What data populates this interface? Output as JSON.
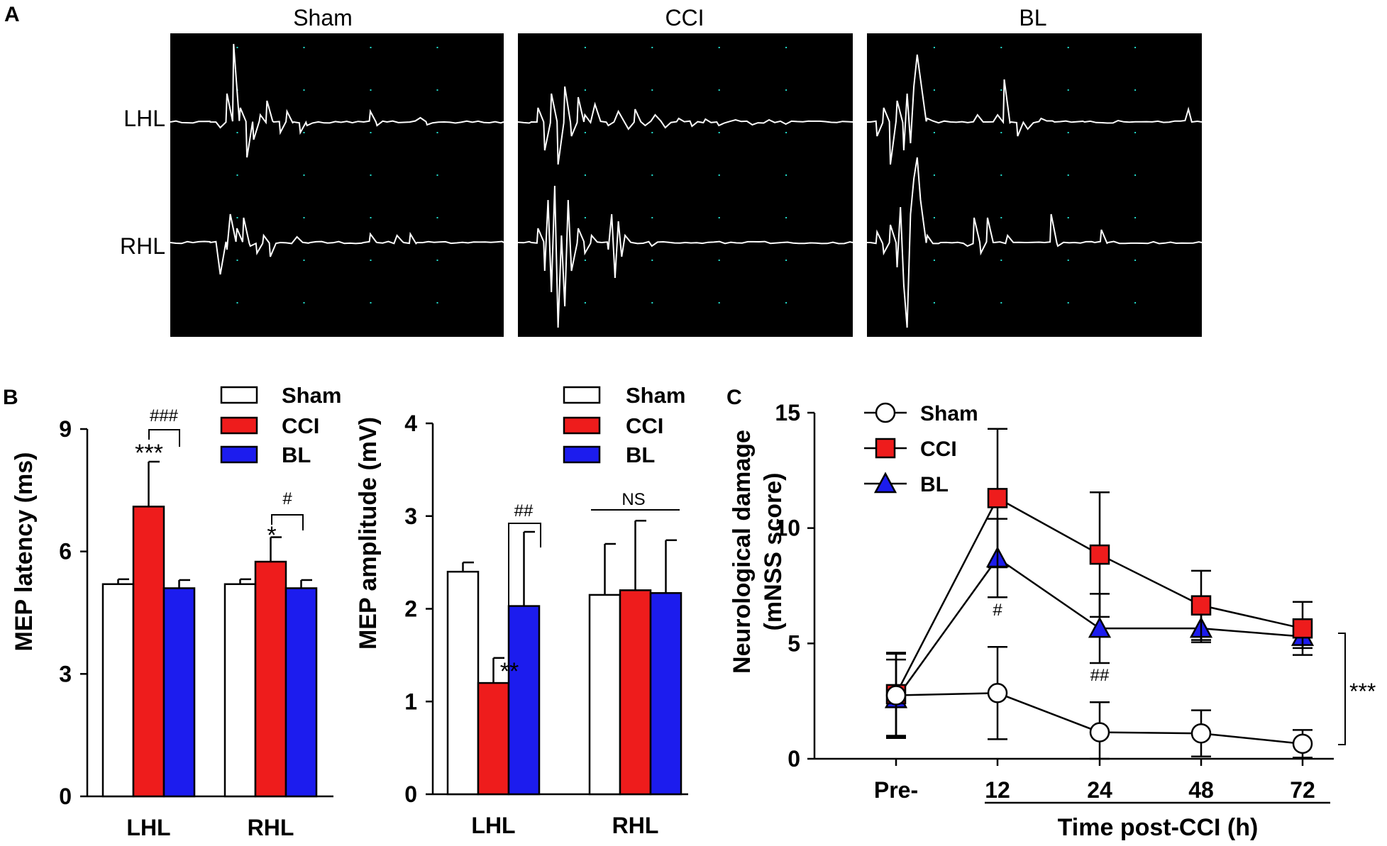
{
  "panel_labels": {
    "a": "A",
    "b": "B",
    "c": "C"
  },
  "traces": {
    "panels": [
      "Sham",
      "CCI",
      "BL"
    ],
    "rows": [
      "LHL",
      "RHL"
    ]
  },
  "colors": {
    "sham": "#ffffff",
    "cci": "#ee1c1c",
    "bl": "#1c1cee",
    "trace": "#ffffff",
    "grid": "#22ddcc",
    "scope_bg": "#000000"
  },
  "chart_data": [
    {
      "type": "bar",
      "id": "latency",
      "ylabel": "MEP latency (ms)",
      "categories": [
        "LHL",
        "RHL"
      ],
      "ylim": [
        0,
        9
      ],
      "yticks": [
        "0",
        "3",
        "6",
        "9"
      ],
      "series": [
        {
          "name": "Sham",
          "values": [
            5.2,
            5.2
          ],
          "errors": [
            0.12,
            0.12
          ]
        },
        {
          "name": "CCI",
          "values": [
            7.1,
            5.75
          ],
          "errors": [
            1.1,
            0.6
          ]
        },
        {
          "name": "BL",
          "values": [
            5.1,
            5.1
          ],
          "errors": [
            0.2,
            0.2
          ]
        }
      ],
      "legend": [
        "Sham",
        "CCI",
        "BL"
      ],
      "annotations": {
        "lhl_star": "***",
        "lhl_hash": "###",
        "rhl_star": "*",
        "rhl_hash": "#"
      }
    },
    {
      "type": "bar",
      "id": "amplitude",
      "ylabel": "MEP amplitude (mV)",
      "categories": [
        "LHL",
        "RHL"
      ],
      "ylim": [
        0,
        4
      ],
      "yticks": [
        "0",
        "1",
        "2",
        "3",
        "4"
      ],
      "series": [
        {
          "name": "Sham",
          "values": [
            2.4,
            2.15
          ],
          "errors": [
            0.1,
            0.55
          ]
        },
        {
          "name": "CCI",
          "values": [
            1.2,
            2.2
          ],
          "errors": [
            0.27,
            0.75
          ]
        },
        {
          "name": "BL",
          "values": [
            2.03,
            2.17
          ],
          "errors": [
            0.8,
            0.57
          ]
        }
      ],
      "legend": [
        "Sham",
        "CCI",
        "BL"
      ],
      "annotations": {
        "lhl_star": "**",
        "lhl_hash": "##",
        "rhl_ns": "NS"
      }
    },
    {
      "type": "line",
      "id": "mnss",
      "ylabel_line1": "Neurological damage",
      "ylabel_line2": "(mNSS score)",
      "xlabel": "Time post-CCI (h)",
      "categories": [
        "Pre-",
        "12",
        "24",
        "48",
        "72"
      ],
      "ylim": [
        0,
        15
      ],
      "yticks": [
        "0",
        "5",
        "10",
        "15"
      ],
      "series": [
        {
          "name": "Sham",
          "values": [
            2.75,
            2.85,
            1.15,
            1.1,
            0.65
          ],
          "errors": [
            1.8,
            2.0,
            1.3,
            1.0,
            0.6
          ],
          "marker": "circle"
        },
        {
          "name": "CCI",
          "values": [
            2.8,
            11.3,
            8.85,
            6.65,
            5.65
          ],
          "errors": [
            1.8,
            3.0,
            2.7,
            1.5,
            1.15
          ],
          "marker": "square"
        },
        {
          "name": "BL",
          "values": [
            2.6,
            8.7,
            5.65,
            5.65,
            5.3
          ],
          "errors": [
            1.7,
            1.7,
            1.5,
            0.6,
            0.5
          ],
          "marker": "triangle"
        }
      ],
      "legend": [
        "Sham",
        "CCI",
        "BL"
      ],
      "annotations": {
        "t12": "#",
        "t24": "##",
        "sig": "***"
      }
    }
  ]
}
